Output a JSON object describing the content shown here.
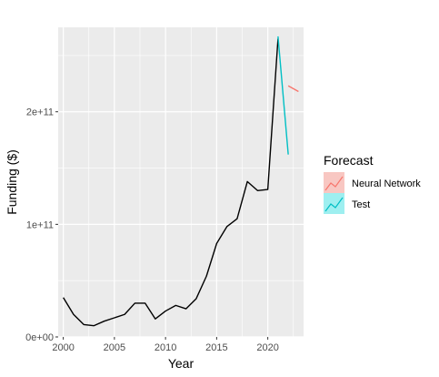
{
  "chart_data": {
    "type": "line",
    "xlabel": "Year",
    "ylabel": "Funding ($)",
    "xlim": [
      1999.5,
      2023.5
    ],
    "ylim": [
      0,
      275000000000
    ],
    "x_ticks": [
      2000,
      2005,
      2010,
      2015,
      2020
    ],
    "x_tick_labels": [
      "2000",
      "2005",
      "2010",
      "2015",
      "2020"
    ],
    "y_ticks": [
      0,
      100000000000,
      200000000000
    ],
    "y_tick_labels": [
      "0e+00",
      "1e+11",
      "2e+11"
    ],
    "grid": true,
    "legend_position": "right",
    "legend_title": "Forecast",
    "history": {
      "color": "#000000",
      "x": [
        2000,
        2001,
        2002,
        2003,
        2004,
        2005,
        2006,
        2007,
        2008,
        2009,
        2010,
        2011,
        2012,
        2013,
        2014,
        2015,
        2016,
        2017,
        2018,
        2019,
        2020,
        2021
      ],
      "y": [
        35000000000,
        20000000000,
        11000000000,
        10000000000,
        14000000000,
        17000000000,
        20000000000,
        30000000000,
        30000000000,
        16000000000,
        23000000000,
        28000000000,
        25000000000,
        34000000000,
        54000000000,
        83000000000,
        98000000000,
        105000000000,
        138000000000,
        130000000000,
        131000000000,
        265000000000
      ]
    },
    "series": [
      {
        "name": "Neural Network",
        "color": "#F8766D",
        "fill": "#F8C7C2",
        "x": [
          2022,
          2023
        ],
        "y": [
          223000000000,
          218000000000
        ]
      },
      {
        "name": "Test",
        "color": "#00BFC4",
        "fill": "#9EEFF0",
        "x": [
          2021,
          2022
        ],
        "y": [
          267000000000,
          162000000000
        ]
      }
    ]
  }
}
